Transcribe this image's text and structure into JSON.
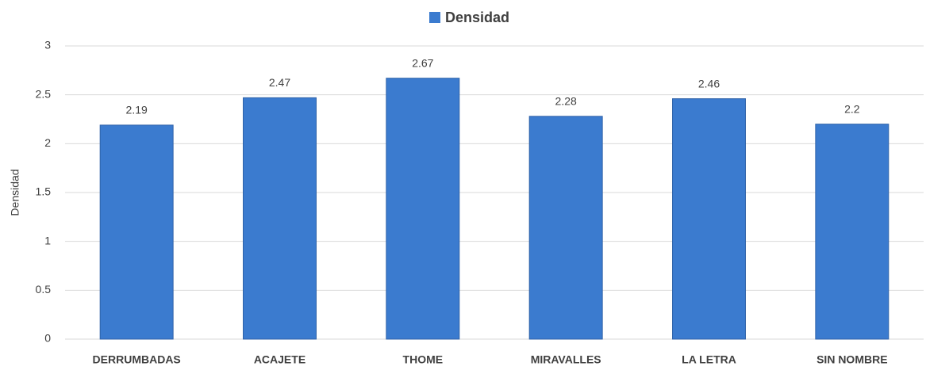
{
  "chart_data": {
    "type": "bar",
    "ylabel": "Densidad",
    "categories": [
      "DERRUMBADAS",
      "ACAJETE",
      "THOME",
      "MIRAVALLES",
      "LA LETRA",
      "SIN NOMBRE"
    ],
    "series": [
      {
        "name": "Densidad",
        "color": "#3b7bcf",
        "values": [
          2.19,
          2.47,
          2.67,
          2.28,
          2.46,
          2.2
        ]
      }
    ],
    "ylim": [
      0,
      3
    ],
    "yticks": [
      0,
      0.5,
      1,
      1.5,
      2,
      2.5,
      3
    ],
    "grid": true,
    "legend": "top"
  }
}
